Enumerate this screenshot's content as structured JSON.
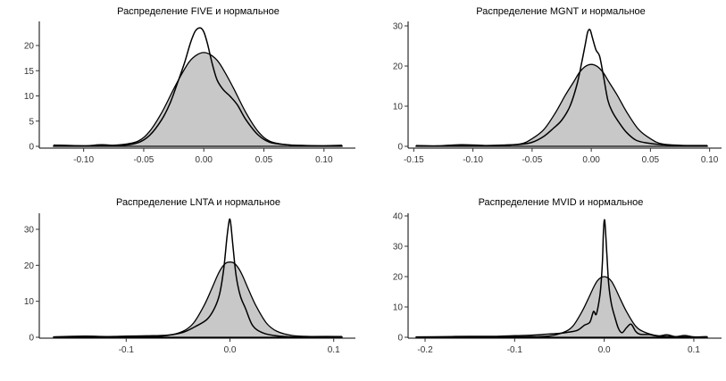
{
  "chart_data": [
    {
      "type": "area",
      "title": "Распределение FIVE и нормальное",
      "xlim": [
        -0.125,
        0.115
      ],
      "ylim": [
        0,
        24
      ],
      "xticks": [
        -0.1,
        -0.05,
        0.0,
        0.05,
        0.1
      ],
      "xtick_labels": [
        "-0.10",
        "-0.05",
        "0.00",
        "0.05",
        "0.10"
      ],
      "yticks": [
        0,
        5,
        10,
        15,
        20
      ],
      "ytick_labels": [
        "0",
        "5",
        "10",
        "15",
        "20"
      ],
      "series": [
        {
          "x": [
            -0.125,
            -0.1,
            -0.085,
            -0.07,
            -0.055,
            -0.045,
            -0.035,
            -0.025,
            -0.018,
            -0.012,
            -0.006,
            0.0,
            0.006,
            0.012,
            0.018,
            0.025,
            0.035,
            0.045,
            0.055,
            0.07,
            0.085,
            0.1,
            0.115
          ],
          "y": [
            0.1,
            0.1,
            0.15,
            0.3,
            1.0,
            3.0,
            6.7,
            11.4,
            14.5,
            16.8,
            18.1,
            18.6,
            18.1,
            16.8,
            14.5,
            11.4,
            6.7,
            3.0,
            1.0,
            0.3,
            0.15,
            0.1,
            0.1
          ]
        },
        {
          "x": [
            -0.125,
            -0.1,
            -0.085,
            -0.07,
            -0.055,
            -0.045,
            -0.035,
            -0.028,
            -0.022,
            -0.016,
            -0.011,
            -0.007,
            -0.003,
            0.0,
            0.003,
            0.007,
            0.011,
            0.016,
            0.022,
            0.028,
            0.035,
            0.045,
            0.055,
            0.07,
            0.085,
            0.1,
            0.115
          ],
          "y": [
            0.25,
            0.1,
            0.3,
            0.15,
            0.7,
            2.2,
            5.3,
            8.6,
            12.5,
            16.6,
            20.6,
            22.9,
            23.5,
            22.7,
            20.4,
            16.4,
            13.2,
            11.3,
            9.9,
            8.2,
            5.3,
            2.3,
            0.8,
            0.3,
            0.15,
            0.1,
            0.2
          ]
        }
      ]
    },
    {
      "type": "area",
      "title": "Распределение MGNT и нормальное",
      "xlim": [
        -0.148,
        0.098
      ],
      "ylim": [
        0,
        30
      ],
      "xticks": [
        -0.15,
        -0.1,
        -0.05,
        0.0,
        0.05,
        0.1
      ],
      "xtick_labels": [
        "-0.15",
        "-0.10",
        "-0.05",
        "0.00",
        "0.05",
        "0.10"
      ],
      "yticks": [
        0,
        10,
        20,
        30
      ],
      "ytick_labels": [
        "0",
        "10",
        "20",
        "30"
      ],
      "series": [
        {
          "x": [
            -0.148,
            -0.12,
            -0.1,
            -0.08,
            -0.06,
            -0.05,
            -0.04,
            -0.03,
            -0.022,
            -0.015,
            -0.01,
            -0.005,
            0.0,
            0.005,
            0.01,
            0.015,
            0.022,
            0.03,
            0.04,
            0.05,
            0.06,
            0.08,
            0.098
          ],
          "y": [
            0.1,
            0.1,
            0.1,
            0.2,
            0.6,
            1.9,
            4.2,
            8.5,
            12.7,
            16.0,
            18.4,
            19.9,
            20.4,
            19.9,
            18.4,
            16.0,
            12.7,
            8.5,
            4.2,
            1.9,
            0.6,
            0.2,
            0.1
          ]
        },
        {
          "x": [
            -0.148,
            -0.13,
            -0.11,
            -0.09,
            -0.075,
            -0.06,
            -0.05,
            -0.04,
            -0.032,
            -0.025,
            -0.018,
            -0.012,
            -0.008,
            -0.005,
            -0.003,
            -0.001,
            0.001,
            0.004,
            0.007,
            0.01,
            0.014,
            0.018,
            0.024,
            0.03,
            0.038,
            0.048,
            0.06,
            0.075,
            0.098
          ],
          "y": [
            0.2,
            0.1,
            0.4,
            0.2,
            0.3,
            0.5,
            1.0,
            2.5,
            4.5,
            6.5,
            10.0,
            15.5,
            21.0,
            25.5,
            28.5,
            29.0,
            27.0,
            24.0,
            22.5,
            18.0,
            11.5,
            8.5,
            5.7,
            3.4,
            1.5,
            0.8,
            0.4,
            0.2,
            0.2
          ]
        }
      ]
    },
    {
      "type": "area",
      "title": "Распределение LNTA и нормальное",
      "xlim": [
        -0.17,
        0.108
      ],
      "ylim": [
        0,
        34
      ],
      "xticks": [
        -0.1,
        0.0,
        0.1
      ],
      "xtick_labels": [
        "-0.1",
        "0.0",
        "0.1"
      ],
      "yticks": [
        0,
        10,
        20,
        30
      ],
      "ytick_labels": [
        "0",
        "10",
        "20",
        "30"
      ],
      "series": [
        {
          "x": [
            -0.17,
            -0.12,
            -0.08,
            -0.06,
            -0.045,
            -0.035,
            -0.025,
            -0.018,
            -0.012,
            -0.008,
            -0.004,
            0.0,
            0.004,
            0.008,
            0.012,
            0.018,
            0.025,
            0.035,
            0.045,
            0.06,
            0.08,
            0.108
          ],
          "y": [
            0.1,
            0.1,
            0.2,
            0.5,
            1.7,
            4.0,
            8.8,
            13.2,
            17.2,
            19.3,
            20.6,
            20.9,
            20.6,
            19.3,
            17.2,
            13.2,
            8.8,
            4.0,
            1.7,
            0.5,
            0.2,
            0.1
          ]
        },
        {
          "x": [
            -0.17,
            -0.14,
            -0.12,
            -0.1,
            -0.08,
            -0.06,
            -0.045,
            -0.032,
            -0.022,
            -0.015,
            -0.01,
            -0.006,
            -0.003,
            -0.001,
            0.0,
            0.001,
            0.003,
            0.006,
            0.01,
            0.015,
            0.022,
            0.032,
            0.045,
            0.06,
            0.08,
            0.108
          ],
          "y": [
            0.1,
            0.3,
            0.2,
            0.3,
            0.4,
            0.6,
            1.4,
            3.2,
            5.0,
            8.0,
            12.0,
            19.0,
            27.5,
            32.0,
            32.8,
            31.0,
            25.0,
            17.0,
            11.5,
            8.0,
            3.2,
            1.2,
            0.4,
            0.1,
            0.2,
            0.2
          ]
        }
      ]
    },
    {
      "type": "area",
      "title": "Распределение MVID и нормальное",
      "xlim": [
        -0.21,
        0.115
      ],
      "ylim": [
        0,
        42
      ],
      "xticks": [
        -0.2,
        -0.1,
        0.0,
        0.1
      ],
      "xtick_labels": [
        "-0.2",
        "-0.1",
        "0.0",
        "0.1"
      ],
      "yticks": [
        0,
        10,
        20,
        30,
        40
      ],
      "ytick_labels": [
        "0",
        "10",
        "20",
        "30",
        "40"
      ],
      "series": [
        {
          "x": [
            -0.21,
            -0.12,
            -0.08,
            -0.06,
            -0.045,
            -0.035,
            -0.025,
            -0.018,
            -0.012,
            -0.008,
            -0.004,
            0.0,
            0.004,
            0.008,
            0.012,
            0.018,
            0.025,
            0.035,
            0.045,
            0.06,
            0.08,
            0.115
          ],
          "y": [
            0.1,
            0.1,
            0.2,
            0.5,
            1.7,
            3.7,
            8.4,
            12.6,
            16.4,
            18.5,
            19.6,
            20.0,
            19.6,
            18.5,
            16.4,
            12.6,
            8.4,
            3.7,
            1.7,
            0.5,
            0.2,
            0.1
          ]
        },
        {
          "x": [
            -0.21,
            -0.18,
            -0.15,
            -0.12,
            -0.1,
            -0.08,
            -0.065,
            -0.05,
            -0.04,
            -0.03,
            -0.022,
            -0.016,
            -0.012,
            -0.009,
            -0.006,
            -0.004,
            -0.002,
            -0.001,
            0.0,
            0.001,
            0.003,
            0.005,
            0.008,
            0.012,
            0.016,
            0.02,
            0.025,
            0.03,
            0.035,
            0.04,
            0.05,
            0.06,
            0.07,
            0.08,
            0.09,
            0.1,
            0.115
          ],
          "y": [
            0.1,
            0.2,
            0.3,
            0.3,
            0.5,
            0.7,
            1.0,
            1.3,
            1.7,
            2.3,
            4.0,
            5.0,
            8.5,
            7.5,
            11.5,
            16.0,
            25.0,
            34.0,
            38.5,
            37.0,
            27.0,
            17.5,
            11.0,
            6.5,
            2.8,
            1.5,
            3.2,
            4.3,
            2.0,
            1.0,
            0.9,
            0.4,
            0.8,
            0.2,
            0.6,
            0.1,
            0.2
          ]
        }
      ]
    }
  ]
}
